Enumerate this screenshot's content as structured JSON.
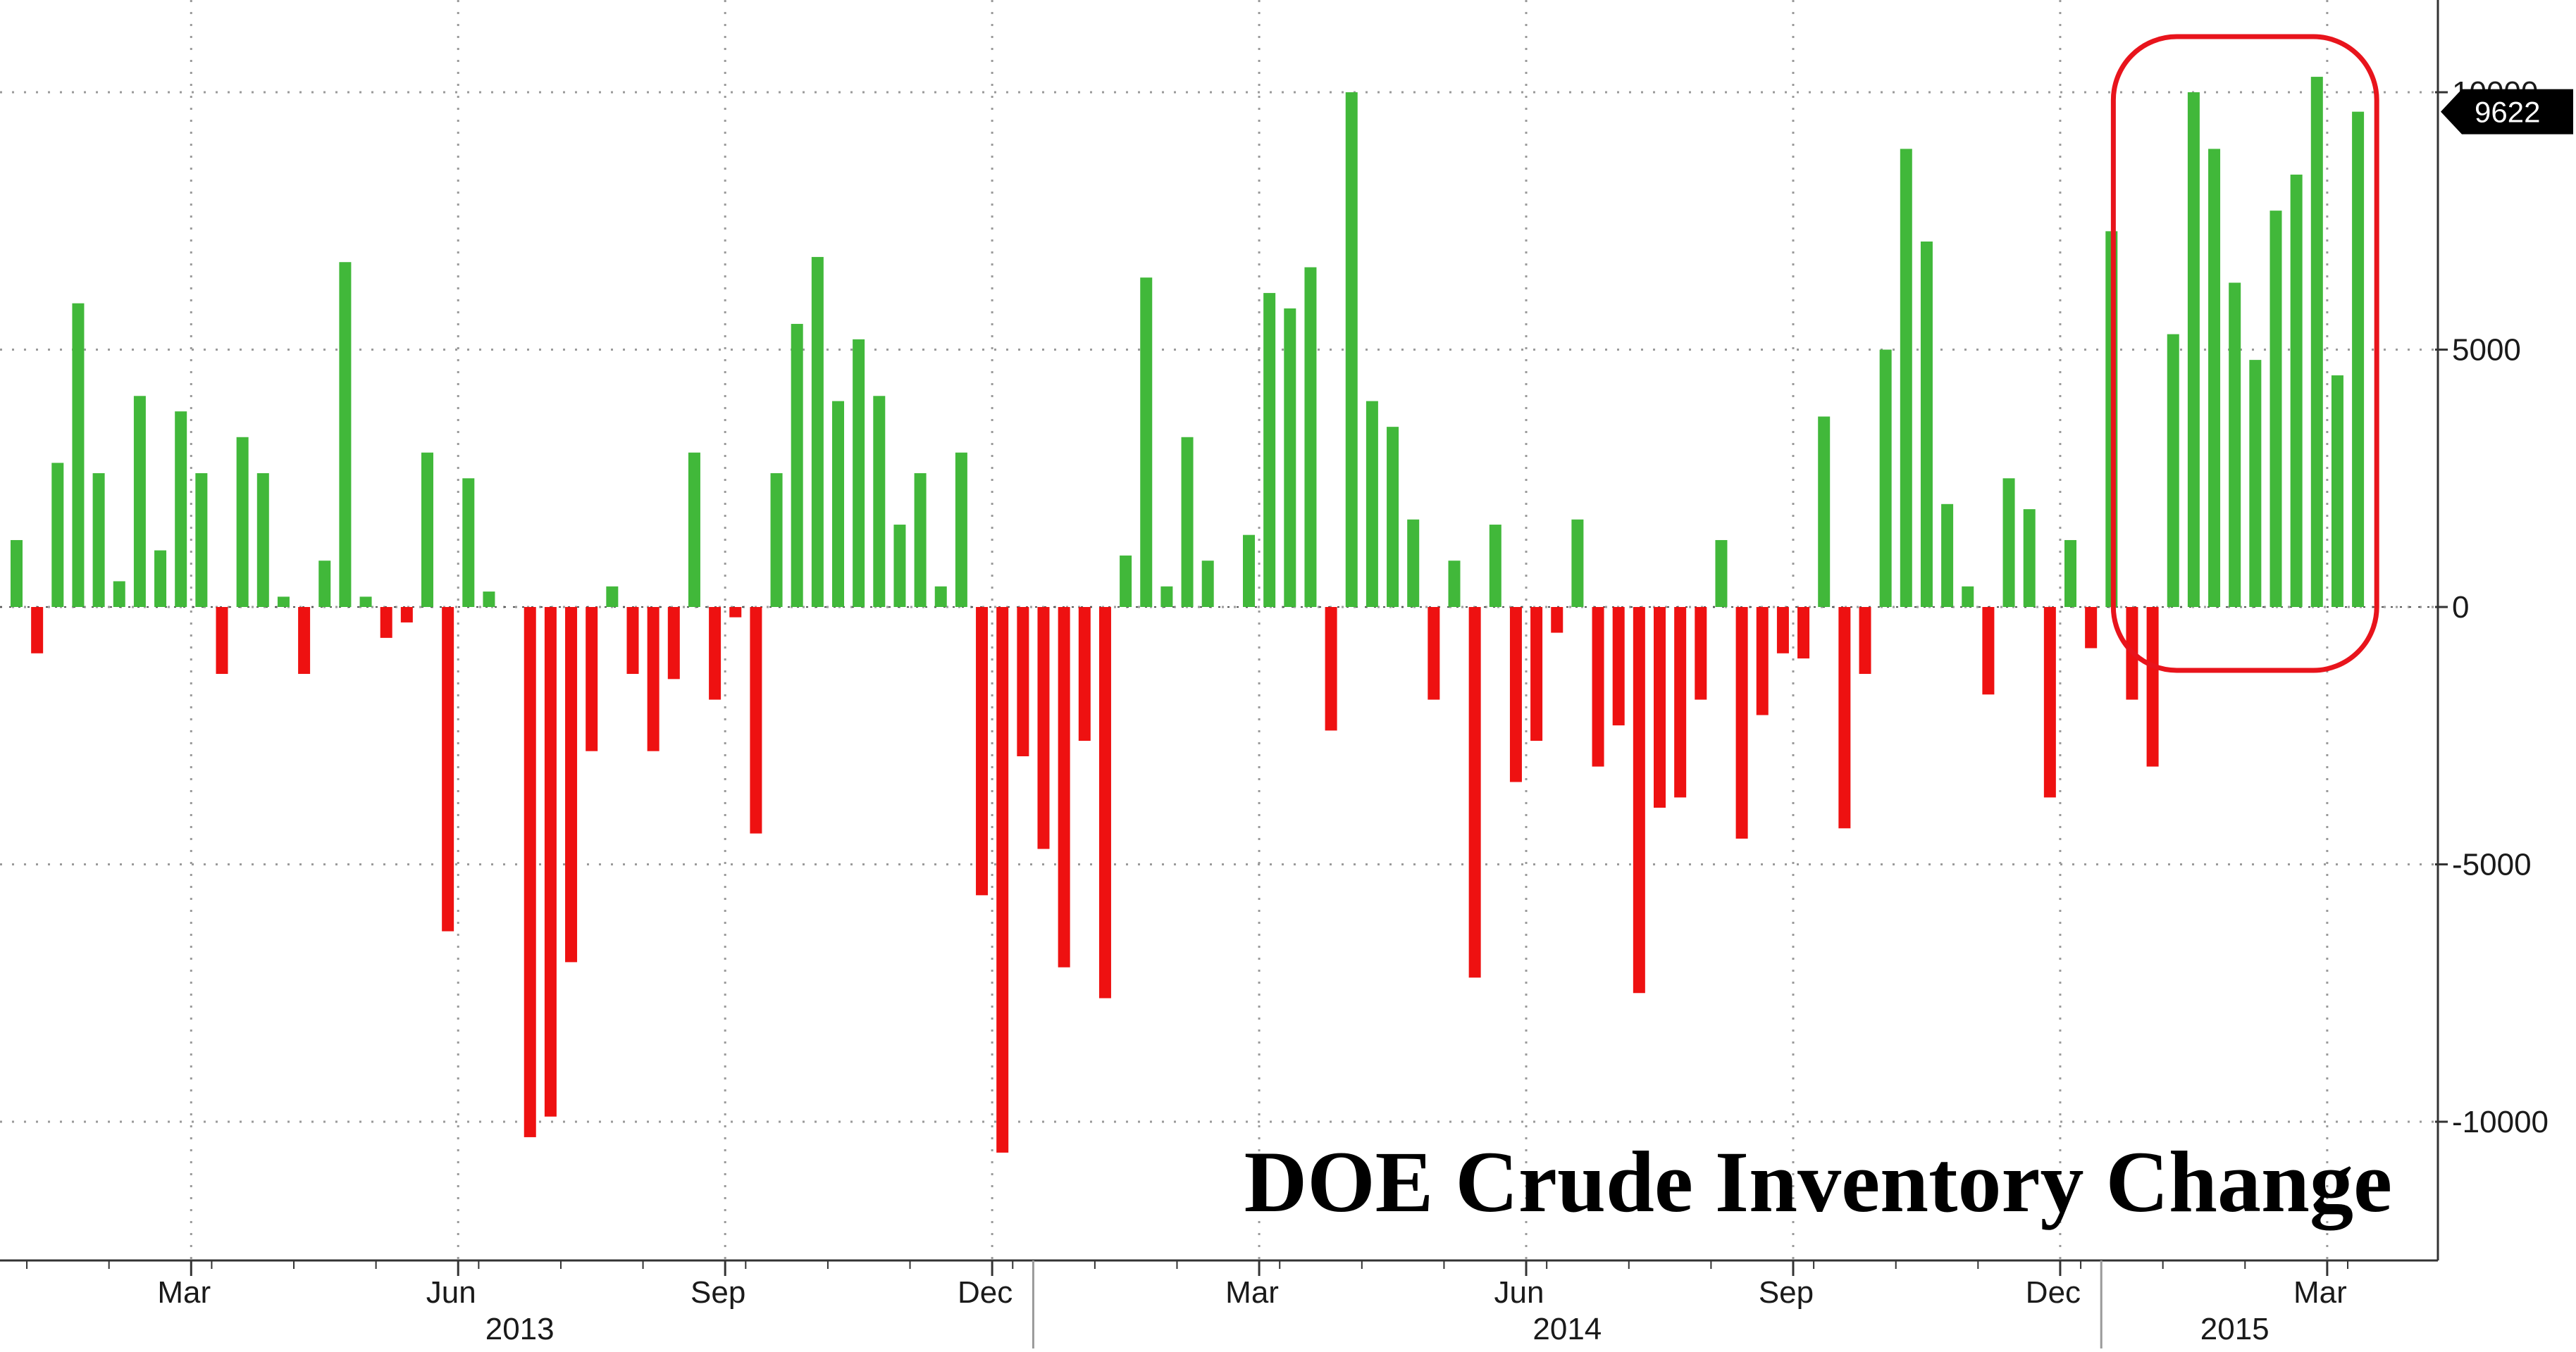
{
  "chart_data": {
    "type": "bar",
    "title": "DOE Crude Inventory Change",
    "ylim": [
      -12500,
      11500
    ],
    "yticks": [
      10000,
      5000,
      0,
      -5000,
      -10000
    ],
    "grid": true,
    "last_value_label": "9622",
    "month_ticks": [
      {
        "label": "Mar",
        "bar": 9
      },
      {
        "label": "Jun",
        "bar": 22
      },
      {
        "label": "Sep",
        "bar": 35
      },
      {
        "label": "Dec",
        "bar": 48
      },
      {
        "label": "Mar",
        "bar": 61
      },
      {
        "label": "Jun",
        "bar": 74
      },
      {
        "label": "Sep",
        "bar": 87
      },
      {
        "label": "Dec",
        "bar": 100
      },
      {
        "label": "Mar",
        "bar": 113
      }
    ],
    "years": [
      {
        "label": "2013",
        "from_bar": 0,
        "to_bar": 50
      },
      {
        "label": "2014",
        "from_bar": 50,
        "to_bar": 102
      },
      {
        "label": "2015",
        "from_bar": 102,
        "to_bar": 115
      }
    ],
    "highlight": {
      "from_bar": 103,
      "to_bar": 114
    },
    "values": [
      1300,
      -900,
      2800,
      5900,
      2600,
      500,
      4100,
      1100,
      3800,
      2600,
      -1300,
      3300,
      2600,
      200,
      -1300,
      900,
      6700,
      200,
      -600,
      -300,
      3000,
      -6300,
      2500,
      300,
      0,
      -10300,
      -9900,
      -6900,
      -2800,
      400,
      -1300,
      -2800,
      -1400,
      3000,
      -1800,
      -200,
      -4400,
      2600,
      5500,
      6800,
      4000,
      5200,
      4100,
      1600,
      2600,
      400,
      3000,
      -5600,
      -10600,
      -2900,
      -4700,
      -7000,
      -2600,
      -7600,
      1000,
      6400,
      400,
      3300,
      900,
      0,
      1400,
      6100,
      5800,
      6600,
      -2400,
      10000,
      4000,
      3500,
      1700,
      -1800,
      900,
      -7200,
      1600,
      -3400,
      -2600,
      -500,
      1700,
      -3100,
      -2300,
      -7500,
      -3900,
      -3700,
      -1800,
      1300,
      -4500,
      -2100,
      -900,
      -1000,
      3700,
      -4300,
      -1300,
      5000,
      8900,
      7100,
      2000,
      400,
      -1700,
      2500,
      1900,
      -3700,
      1300,
      -800,
      7300,
      -1800,
      -3100,
      5300,
      10000,
      8900,
      6300,
      4800,
      7700,
      8400,
      10300,
      4500,
      9622
    ]
  }
}
